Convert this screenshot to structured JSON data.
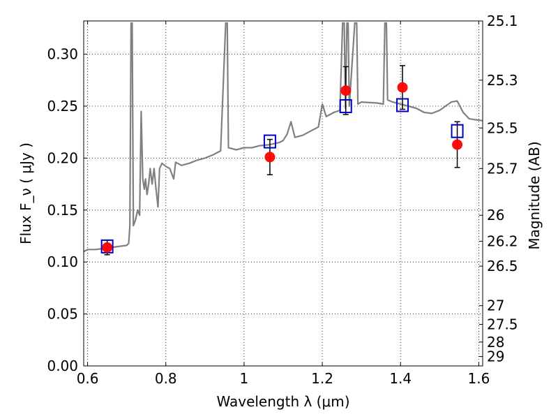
{
  "chart_data": {
    "type": "scatter",
    "xlabel": "Wavelength  λ (μm)",
    "ylabel": "Flux  F_ν  ( μJy )",
    "ylabel_right": "Magnitude (AB)",
    "xlim": [
      0.59,
      1.61
    ],
    "ylim": [
      0.0,
      0.332
    ],
    "grid": true,
    "x_ticks": [
      {
        "value": 0.6,
        "label": "0.6"
      },
      {
        "value": 0.8,
        "label": "0.8"
      },
      {
        "value": 1.0,
        "label": "1"
      },
      {
        "value": 1.2,
        "label": "1.2"
      },
      {
        "value": 1.4,
        "label": "1.4"
      },
      {
        "value": 1.6,
        "label": "1.6"
      }
    ],
    "y_ticks": [
      {
        "value": 0.0,
        "label": "0.00"
      },
      {
        "value": 0.05,
        "label": "0.05"
      },
      {
        "value": 0.1,
        "label": "0.10"
      },
      {
        "value": 0.15,
        "label": "0.15"
      },
      {
        "value": 0.2,
        "label": "0.20"
      },
      {
        "value": 0.25,
        "label": "0.25"
      },
      {
        "value": 0.3,
        "label": "0.30"
      }
    ],
    "right_ticks": [
      {
        "flux": 0.332,
        "label": "25.1"
      },
      {
        "flux": 0.275,
        "label": "25.3"
      },
      {
        "flux": 0.229,
        "label": "25.5"
      },
      {
        "flux": 0.19,
        "label": "25.7"
      },
      {
        "flux": 0.145,
        "label": "26"
      },
      {
        "flux": 0.12,
        "label": "26.2"
      },
      {
        "flux": 0.096,
        "label": "26.5"
      },
      {
        "flux": 0.058,
        "label": "27"
      },
      {
        "flux": 0.04,
        "label": "27.5"
      },
      {
        "flux": 0.023,
        "label": "28"
      },
      {
        "flux": 0.009,
        "label": "29"
      }
    ],
    "series": [
      {
        "kind": "observed",
        "color": "#ff0000",
        "points": [
          {
            "x": 0.65,
            "y": 0.114,
            "err": 0.007
          },
          {
            "x": 1.066,
            "y": 0.201,
            "err": 0.017
          },
          {
            "x": 1.26,
            "y": 0.265,
            "err": 0.023
          },
          {
            "x": 1.405,
            "y": 0.268,
            "err": 0.021
          },
          {
            "x": 1.545,
            "y": 0.213,
            "err": 0.022
          }
        ]
      },
      {
        "kind": "model",
        "color": "#0000cc",
        "points": [
          {
            "x": 0.65,
            "y": 0.115
          },
          {
            "x": 1.066,
            "y": 0.216
          },
          {
            "x": 1.26,
            "y": 0.25
          },
          {
            "x": 1.405,
            "y": 0.251
          },
          {
            "x": 1.545,
            "y": 0.226
          }
        ]
      },
      {
        "kind": "spectrum",
        "color": "#808080",
        "points": [
          [
            0.59,
            0.11
          ],
          [
            0.6,
            0.112
          ],
          [
            0.62,
            0.112
          ],
          [
            0.64,
            0.113
          ],
          [
            0.66,
            0.114
          ],
          [
            0.68,
            0.115
          ],
          [
            0.7,
            0.116
          ],
          [
            0.705,
            0.118
          ],
          [
            0.708,
            0.135
          ],
          [
            0.711,
            0.33
          ],
          [
            0.714,
            0.33
          ],
          [
            0.717,
            0.135
          ],
          [
            0.722,
            0.14
          ],
          [
            0.728,
            0.15
          ],
          [
            0.733,
            0.145
          ],
          [
            0.737,
            0.245
          ],
          [
            0.741,
            0.18
          ],
          [
            0.745,
            0.17
          ],
          [
            0.748,
            0.18
          ],
          [
            0.752,
            0.165
          ],
          [
            0.756,
            0.175
          ],
          [
            0.76,
            0.19
          ],
          [
            0.765,
            0.175
          ],
          [
            0.77,
            0.19
          ],
          [
            0.775,
            0.17
          ],
          [
            0.78,
            0.153
          ],
          [
            0.784,
            0.19
          ],
          [
            0.79,
            0.195
          ],
          [
            0.8,
            0.192
          ],
          [
            0.81,
            0.19
          ],
          [
            0.82,
            0.18
          ],
          [
            0.825,
            0.196
          ],
          [
            0.84,
            0.193
          ],
          [
            0.86,
            0.195
          ],
          [
            0.88,
            0.198
          ],
          [
            0.9,
            0.2
          ],
          [
            0.92,
            0.203
          ],
          [
            0.94,
            0.207
          ],
          [
            0.953,
            0.33
          ],
          [
            0.957,
            0.33
          ],
          [
            0.96,
            0.21
          ],
          [
            0.98,
            0.208
          ],
          [
            1.0,
            0.21
          ],
          [
            1.02,
            0.21
          ],
          [
            1.04,
            0.212
          ],
          [
            1.066,
            0.213
          ],
          [
            1.09,
            0.215
          ],
          [
            1.1,
            0.217
          ],
          [
            1.11,
            0.223
          ],
          [
            1.12,
            0.235
          ],
          [
            1.13,
            0.22
          ],
          [
            1.15,
            0.222
          ],
          [
            1.17,
            0.226
          ],
          [
            1.19,
            0.23
          ],
          [
            1.2,
            0.252
          ],
          [
            1.21,
            0.24
          ],
          [
            1.23,
            0.244
          ],
          [
            1.245,
            0.246
          ],
          [
            1.252,
            0.33
          ],
          [
            1.256,
            0.33
          ],
          [
            1.259,
            0.248
          ],
          [
            1.263,
            0.33
          ],
          [
            1.266,
            0.33
          ],
          [
            1.269,
            0.25
          ],
          [
            1.283,
            0.33
          ],
          [
            1.288,
            0.33
          ],
          [
            1.291,
            0.252
          ],
          [
            1.3,
            0.254
          ],
          [
            1.34,
            0.253
          ],
          [
            1.356,
            0.252
          ],
          [
            1.36,
            0.33
          ],
          [
            1.364,
            0.33
          ],
          [
            1.367,
            0.256
          ],
          [
            1.38,
            0.254
          ],
          [
            1.4,
            0.252
          ],
          [
            1.42,
            0.25
          ],
          [
            1.44,
            0.248
          ],
          [
            1.46,
            0.244
          ],
          [
            1.48,
            0.243
          ],
          [
            1.5,
            0.246
          ],
          [
            1.515,
            0.25
          ],
          [
            1.53,
            0.254
          ],
          [
            1.545,
            0.255
          ],
          [
            1.56,
            0.244
          ],
          [
            1.575,
            0.238
          ],
          [
            1.59,
            0.237
          ],
          [
            1.61,
            0.236
          ]
        ]
      }
    ]
  }
}
